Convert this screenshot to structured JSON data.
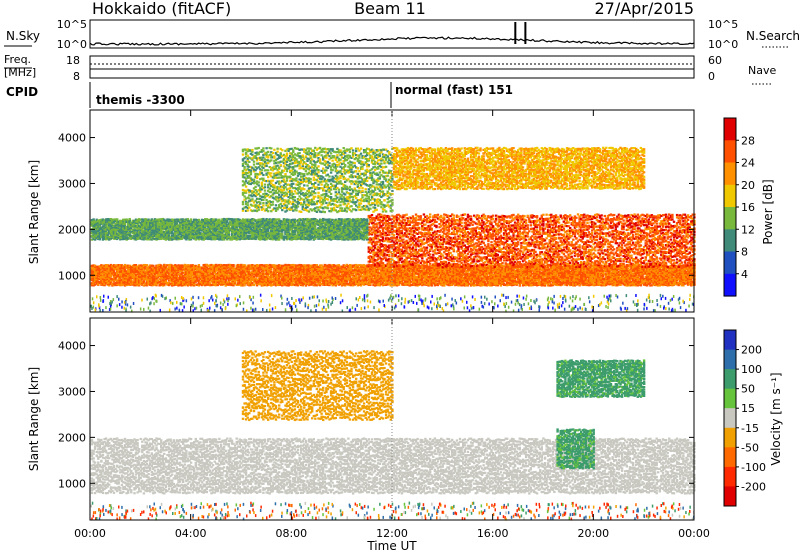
{
  "header": {
    "title": "Hokkaido (fitACF)",
    "beam": "Beam 11",
    "date": "27/Apr/2015"
  },
  "noise_panel": {
    "left_label": "N.Sky",
    "right_label": "N.Search",
    "left_ticks": [
      "10^5",
      "10^0"
    ],
    "right_ticks": [
      "10^5",
      "10^0"
    ]
  },
  "freq_panel": {
    "left_label_line1": "Freq.",
    "left_label_line2": "[MHz]",
    "left_ticks": [
      "18",
      "8"
    ],
    "right_label": "Nave",
    "right_ticks": [
      "60",
      "0"
    ]
  },
  "cpid_panel": {
    "label": "CPID",
    "modes": [
      {
        "name": "themis -3300",
        "start_hour": 0
      },
      {
        "name": "normal (fast) 151",
        "start_hour": 12
      }
    ]
  },
  "x_axis": {
    "label": "Time UT",
    "ticks": [
      "00:00",
      "04:00",
      "08:00",
      "12:00",
      "16:00",
      "20:00",
      "00:00"
    ]
  },
  "power_panel": {
    "ylabel": "Slant Range [km]",
    "yticks": [
      "1000",
      "2000",
      "3000",
      "4000"
    ],
    "colorbar_label": "Power [dB]",
    "colorbar_ticks": [
      "4",
      "8",
      "12",
      "16",
      "20",
      "24",
      "28"
    ],
    "colorbar_colors": [
      "#1010ff",
      "#2050c0",
      "#3f8a78",
      "#78b83c",
      "#f0c800",
      "#ff9000",
      "#ff5000",
      "#e00000"
    ]
  },
  "velocity_panel": {
    "ylabel": "Slant Range [km]",
    "yticks": [
      "1000",
      "2000",
      "3000",
      "4000"
    ],
    "colorbar_label": "Velocity [m s⁻¹]",
    "colorbar_ticks": [
      "200",
      "100",
      "50",
      "15",
      "-15",
      "-50",
      "-100",
      "-200"
    ],
    "colorbar_colors": [
      "#2030c0",
      "#2e6eaa",
      "#3c9c6c",
      "#66c43c",
      "#c8c8c0",
      "#f0a000",
      "#ff6a00",
      "#ff2a00",
      "#e00000"
    ]
  },
  "chart_data": {
    "type": "heatmap",
    "x_unit": "hours UT",
    "xlim": [
      0,
      24
    ],
    "y_unit": "slant range km",
    "ylim": [
      200,
      4600
    ],
    "power_db_range": [
      0,
      32
    ],
    "velocity_range": [
      -250,
      250
    ],
    "power_regions": [
      {
        "desc": "near-range band",
        "t": [
          0,
          24
        ],
        "range": [
          800,
          1250
        ],
        "power": 24
      },
      {
        "desc": "main echo arc",
        "t": [
          11,
          24
        ],
        "range": [
          1200,
          2350
        ],
        "power": 26
      },
      {
        "desc": "mid-range green band",
        "t": [
          0,
          11
        ],
        "range": [
          1800,
          2250
        ],
        "power": 12
      },
      {
        "desc": "far-range streaks",
        "t": [
          6,
          12
        ],
        "range": [
          2400,
          3800
        ],
        "power": 14
      },
      {
        "desc": "far-range echoes",
        "t": [
          12,
          22
        ],
        "range": [
          2900,
          3800
        ],
        "power": 20
      }
    ],
    "velocity_regions": [
      {
        "desc": "near-range low velocity",
        "t": [
          0,
          24
        ],
        "range": [
          800,
          2000
        ],
        "velocity": 0
      },
      {
        "desc": "positive velocity patch",
        "t": [
          18.5,
          20
        ],
        "range": [
          1350,
          2200
        ],
        "velocity": 60
      },
      {
        "desc": "far-range mixed",
        "t": [
          6,
          12
        ],
        "range": [
          2400,
          3900
        ],
        "velocity": -30
      },
      {
        "desc": "far-range positive",
        "t": [
          18.5,
          22
        ],
        "range": [
          2900,
          3700
        ],
        "velocity": 60
      }
    ]
  }
}
